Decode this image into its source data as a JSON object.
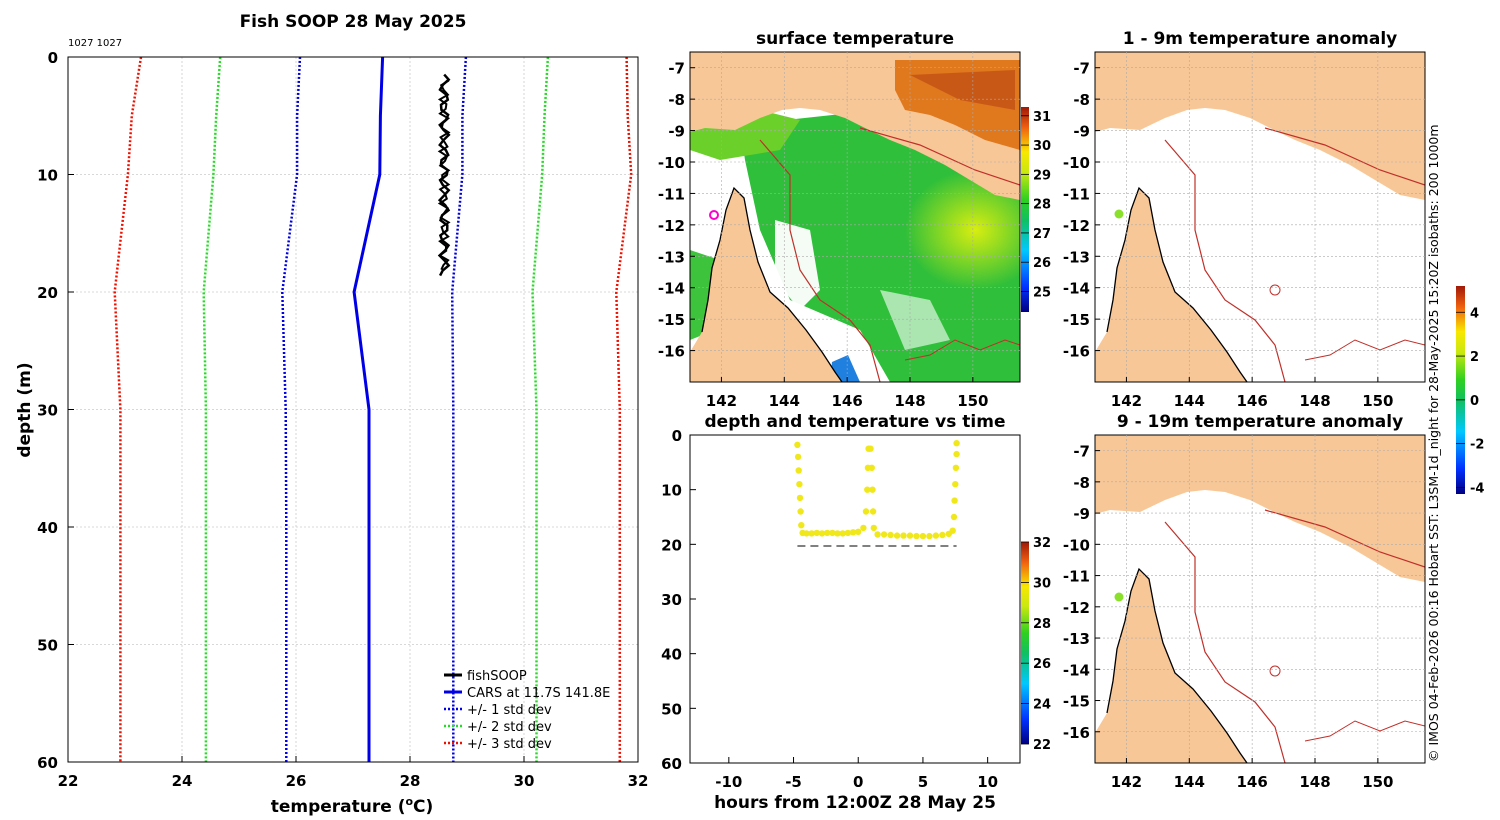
{
  "colors": {
    "land": "#f8c797",
    "cars": "#0000e6",
    "std1": "#0000e6",
    "std2": "#22dd22",
    "std3": "#ee1100",
    "fish": "#000000",
    "isobath": "#c0302a",
    "track": "#f0e81a"
  },
  "profile": {
    "title": "Fish SOOP 28 May 2025",
    "id_text": "1027 1027",
    "xlabel": "temperature (",
    "xlabel_sup": "o",
    "xlabel_end": "C)",
    "ylabel": "depth (m)",
    "xlim": [
      22,
      32
    ],
    "ylim": [
      0,
      60
    ],
    "xticks": [
      "22",
      "24",
      "26",
      "28",
      "30",
      "32"
    ],
    "yticks": [
      "0",
      "10",
      "20",
      "30",
      "40",
      "50",
      "60"
    ],
    "legend": [
      "fishSOOP",
      "CARS at 11.7S 141.8E",
      "+/- 1 std dev",
      "+/- 2 std dev",
      "+/- 3 std dev"
    ]
  },
  "chart_data": [
    {
      "type": "line",
      "id": "profile",
      "title": "Fish SOOP 28 May 2025",
      "xlabel": "temperature (oC)",
      "ylabel": "depth (m)",
      "xlim": [
        22,
        32
      ],
      "ylim": [
        0,
        60
      ],
      "depth": [
        0,
        5,
        10,
        20,
        30,
        40,
        50,
        60
      ],
      "series": [
        {
          "name": "CARS at 11.7S 141.8E",
          "values": [
            27.52,
            27.48,
            27.47,
            27.02,
            27.28,
            27.28,
            27.28,
            27.28
          ]
        },
        {
          "name": "CARS - 1 std dev",
          "values": [
            26.07,
            26.02,
            26.02,
            25.76,
            25.82,
            25.83,
            25.83,
            25.83
          ]
        },
        {
          "name": "CARS + 1 std dev",
          "values": [
            28.98,
            28.92,
            28.92,
            28.74,
            28.76,
            28.76,
            28.76,
            28.76
          ]
        },
        {
          "name": "CARS - 2 std dev",
          "values": [
            24.67,
            24.6,
            24.55,
            24.38,
            24.42,
            24.42,
            24.42,
            24.42
          ]
        },
        {
          "name": "CARS + 2 std dev",
          "values": [
            30.42,
            30.36,
            30.32,
            30.15,
            30.22,
            30.22,
            30.22,
            30.22
          ]
        },
        {
          "name": "CARS - 3 std dev",
          "values": [
            23.28,
            23.12,
            23.05,
            22.82,
            22.92,
            22.92,
            22.92,
            22.92
          ]
        },
        {
          "name": "CARS + 3 std dev",
          "values": [
            31.8,
            31.82,
            31.88,
            31.62,
            31.68,
            31.68,
            31.68,
            31.68
          ]
        }
      ],
      "fishsoop": {
        "depth_min": 1.5,
        "depth_max": 18.6,
        "temp_min": 28.52,
        "temp_max": 28.68
      }
    },
    {
      "type": "scatter",
      "id": "timeseries",
      "title": "depth and temperature vs time",
      "xlabel": "hours from 12:00Z 28 May 25",
      "ylabel": "",
      "xlim": [
        -13,
        12.5
      ],
      "ylim": [
        0,
        60
      ],
      "color_range": [
        22,
        32
      ],
      "bottom_depth": 20.3,
      "bottom_hours": [
        -4.7,
        7.6
      ],
      "points": [
        [
          -4.7,
          1.8
        ],
        [
          -4.65,
          4
        ],
        [
          -4.6,
          6.5
        ],
        [
          -4.55,
          9
        ],
        [
          -4.5,
          11.5
        ],
        [
          -4.45,
          14
        ],
        [
          -4.4,
          16.5
        ],
        [
          -4.3,
          17.9
        ],
        [
          -4.0,
          18
        ],
        [
          -3.6,
          18
        ],
        [
          -3.2,
          17.9
        ],
        [
          -2.8,
          18
        ],
        [
          -2.4,
          17.9
        ],
        [
          -2.0,
          17.9
        ],
        [
          -1.6,
          18
        ],
        [
          -1.2,
          18
        ],
        [
          -0.8,
          17.9
        ],
        [
          -0.4,
          17.8
        ],
        [
          0,
          17.7
        ],
        [
          0.4,
          17
        ],
        [
          0.6,
          14
        ],
        [
          0.7,
          10
        ],
        [
          0.75,
          6
        ],
        [
          0.8,
          2.5
        ],
        [
          0.95,
          2.5
        ],
        [
          1.05,
          6
        ],
        [
          1.1,
          10
        ],
        [
          1.15,
          14
        ],
        [
          1.2,
          17
        ],
        [
          1.5,
          18.2
        ],
        [
          2.0,
          18.2
        ],
        [
          2.5,
          18.3
        ],
        [
          3.0,
          18.4
        ],
        [
          3.5,
          18.4
        ],
        [
          4.0,
          18.4
        ],
        [
          4.5,
          18.5
        ],
        [
          5.0,
          18.5
        ],
        [
          5.5,
          18.5
        ],
        [
          6.0,
          18.4
        ],
        [
          6.5,
          18.3
        ],
        [
          7.0,
          18.1
        ],
        [
          7.3,
          17.5
        ],
        [
          7.4,
          15
        ],
        [
          7.45,
          12
        ],
        [
          7.5,
          9
        ],
        [
          7.55,
          6
        ],
        [
          7.6,
          3.5
        ],
        [
          7.6,
          1.5
        ]
      ],
      "point_temperature": 29.6,
      "colorbar_ticks": [
        "22",
        "24",
        "26",
        "28",
        "30",
        "32"
      ]
    },
    {
      "type": "heatmap",
      "id": "sst-map",
      "title": "surface temperature",
      "lon_range": [
        141,
        151.5
      ],
      "lat_range": [
        -17,
        -6.5
      ],
      "xticks": [
        "142",
        "144",
        "146",
        "148",
        "150"
      ],
      "yticks": [
        "-7",
        "-8",
        "-9",
        "-10",
        "-11",
        "-12",
        "-13",
        "-14",
        "-15",
        "-16"
      ],
      "color_range": [
        24.3,
        31.3
      ],
      "colorbar_ticks": [
        "25",
        "26",
        "27",
        "28",
        "29",
        "30",
        "31"
      ],
      "station": {
        "lon": 141.8,
        "lat": -11.7
      }
    },
    {
      "type": "heatmap",
      "id": "anom-1-9",
      "title": "1 - 9m temperature anomaly",
      "lon_range": [
        141,
        151.5
      ],
      "lat_range": [
        -17,
        -6.5
      ],
      "xticks": [
        "142",
        "144",
        "146",
        "148",
        "150"
      ],
      "yticks": [
        "-7",
        "-8",
        "-9",
        "-10",
        "-11",
        "-12",
        "-13",
        "-14",
        "-15",
        "-16"
      ],
      "station": {
        "lon": 141.8,
        "lat": -11.7,
        "anomaly": 1.3
      }
    },
    {
      "type": "heatmap",
      "id": "anom-9-19",
      "title": "9 - 19m temperature anomaly",
      "lon_range": [
        141,
        151.5
      ],
      "lat_range": [
        -17,
        -6.5
      ],
      "xticks": [
        "142",
        "144",
        "146",
        "148",
        "150"
      ],
      "yticks": [
        "-7",
        "-8",
        "-9",
        "-10",
        "-11",
        "-12",
        "-13",
        "-14",
        "-15",
        "-16"
      ],
      "station": {
        "lon": 141.8,
        "lat": -11.7,
        "anomaly": 1.3
      }
    }
  ],
  "anomaly_colorbar": {
    "range": [
      -4.3,
      5.2
    ],
    "ticks": [
      "4",
      "2",
      "0",
      "-2",
      "-4"
    ]
  },
  "side_caption": "© IMOS 04-Feb-2026 00:16 Hobart SST: L3SM-1d_night for 28-May-2025 15:20Z isobaths: 200  1000m"
}
